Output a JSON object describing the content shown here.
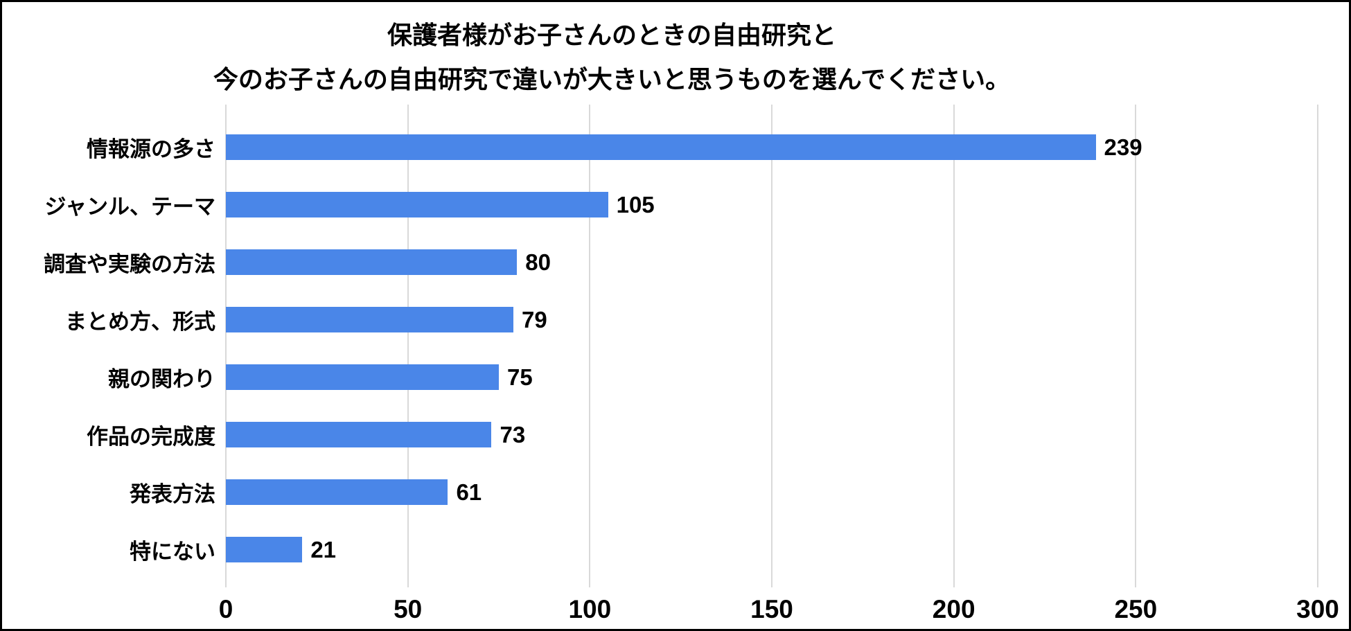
{
  "chart_data": {
    "type": "bar",
    "orientation": "horizontal",
    "title_lines": [
      "保護者様がお子さんのときの自由研究と",
      "今のお子さんの自由研究で違いが大きいと思うものを選んでください。"
    ],
    "categories": [
      "情報源の多さ",
      "ジャンル、テーマ",
      "調査や実験の方法",
      "まとめ方、形式",
      "親の関わり",
      "作品の完成度",
      "発表方法",
      "特にない"
    ],
    "values": [
      239,
      105,
      80,
      79,
      75,
      73,
      61,
      21
    ],
    "value_labels": true,
    "xlim": [
      0,
      300
    ],
    "xticks": [
      0,
      50,
      100,
      150,
      200,
      250,
      300
    ],
    "grid": true,
    "legend": false,
    "colors": {
      "bar": "#4a86e8",
      "gridline": "#d9d9d9",
      "text": "#000000",
      "background": "#ffffff",
      "frame_border": "#000000"
    }
  }
}
